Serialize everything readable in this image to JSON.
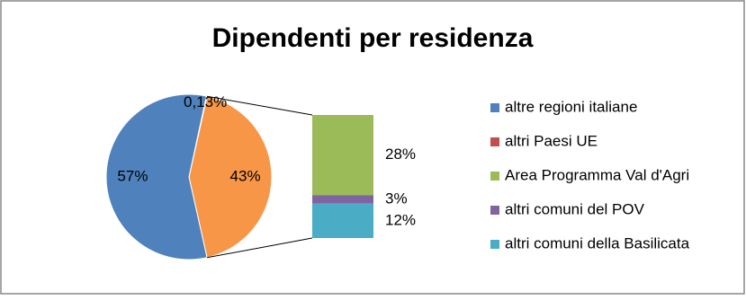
{
  "chart_data": {
    "type": "bar-of-pie",
    "title": "Dipendenti per residenza",
    "categories": [
      "altre regioni italiane",
      "altri Paesi UE",
      "Area Programma Val d'Agri",
      "altri comuni del POV",
      "altri comuni della Basilicata"
    ],
    "values": [
      57,
      0.13,
      28,
      3,
      12
    ],
    "value_labels": [
      "57%",
      "0,13%",
      "28%",
      "3%",
      "12%"
    ],
    "colors": [
      "#4f81bd",
      "#c0504d",
      "#9bbb59",
      "#8064a2",
      "#4bacc6"
    ],
    "placement": [
      "pie",
      "pie",
      "bar",
      "bar",
      "bar"
    ],
    "other_value": 43,
    "other_label": "43%",
    "other_color": "#f79646",
    "legend": "right"
  }
}
